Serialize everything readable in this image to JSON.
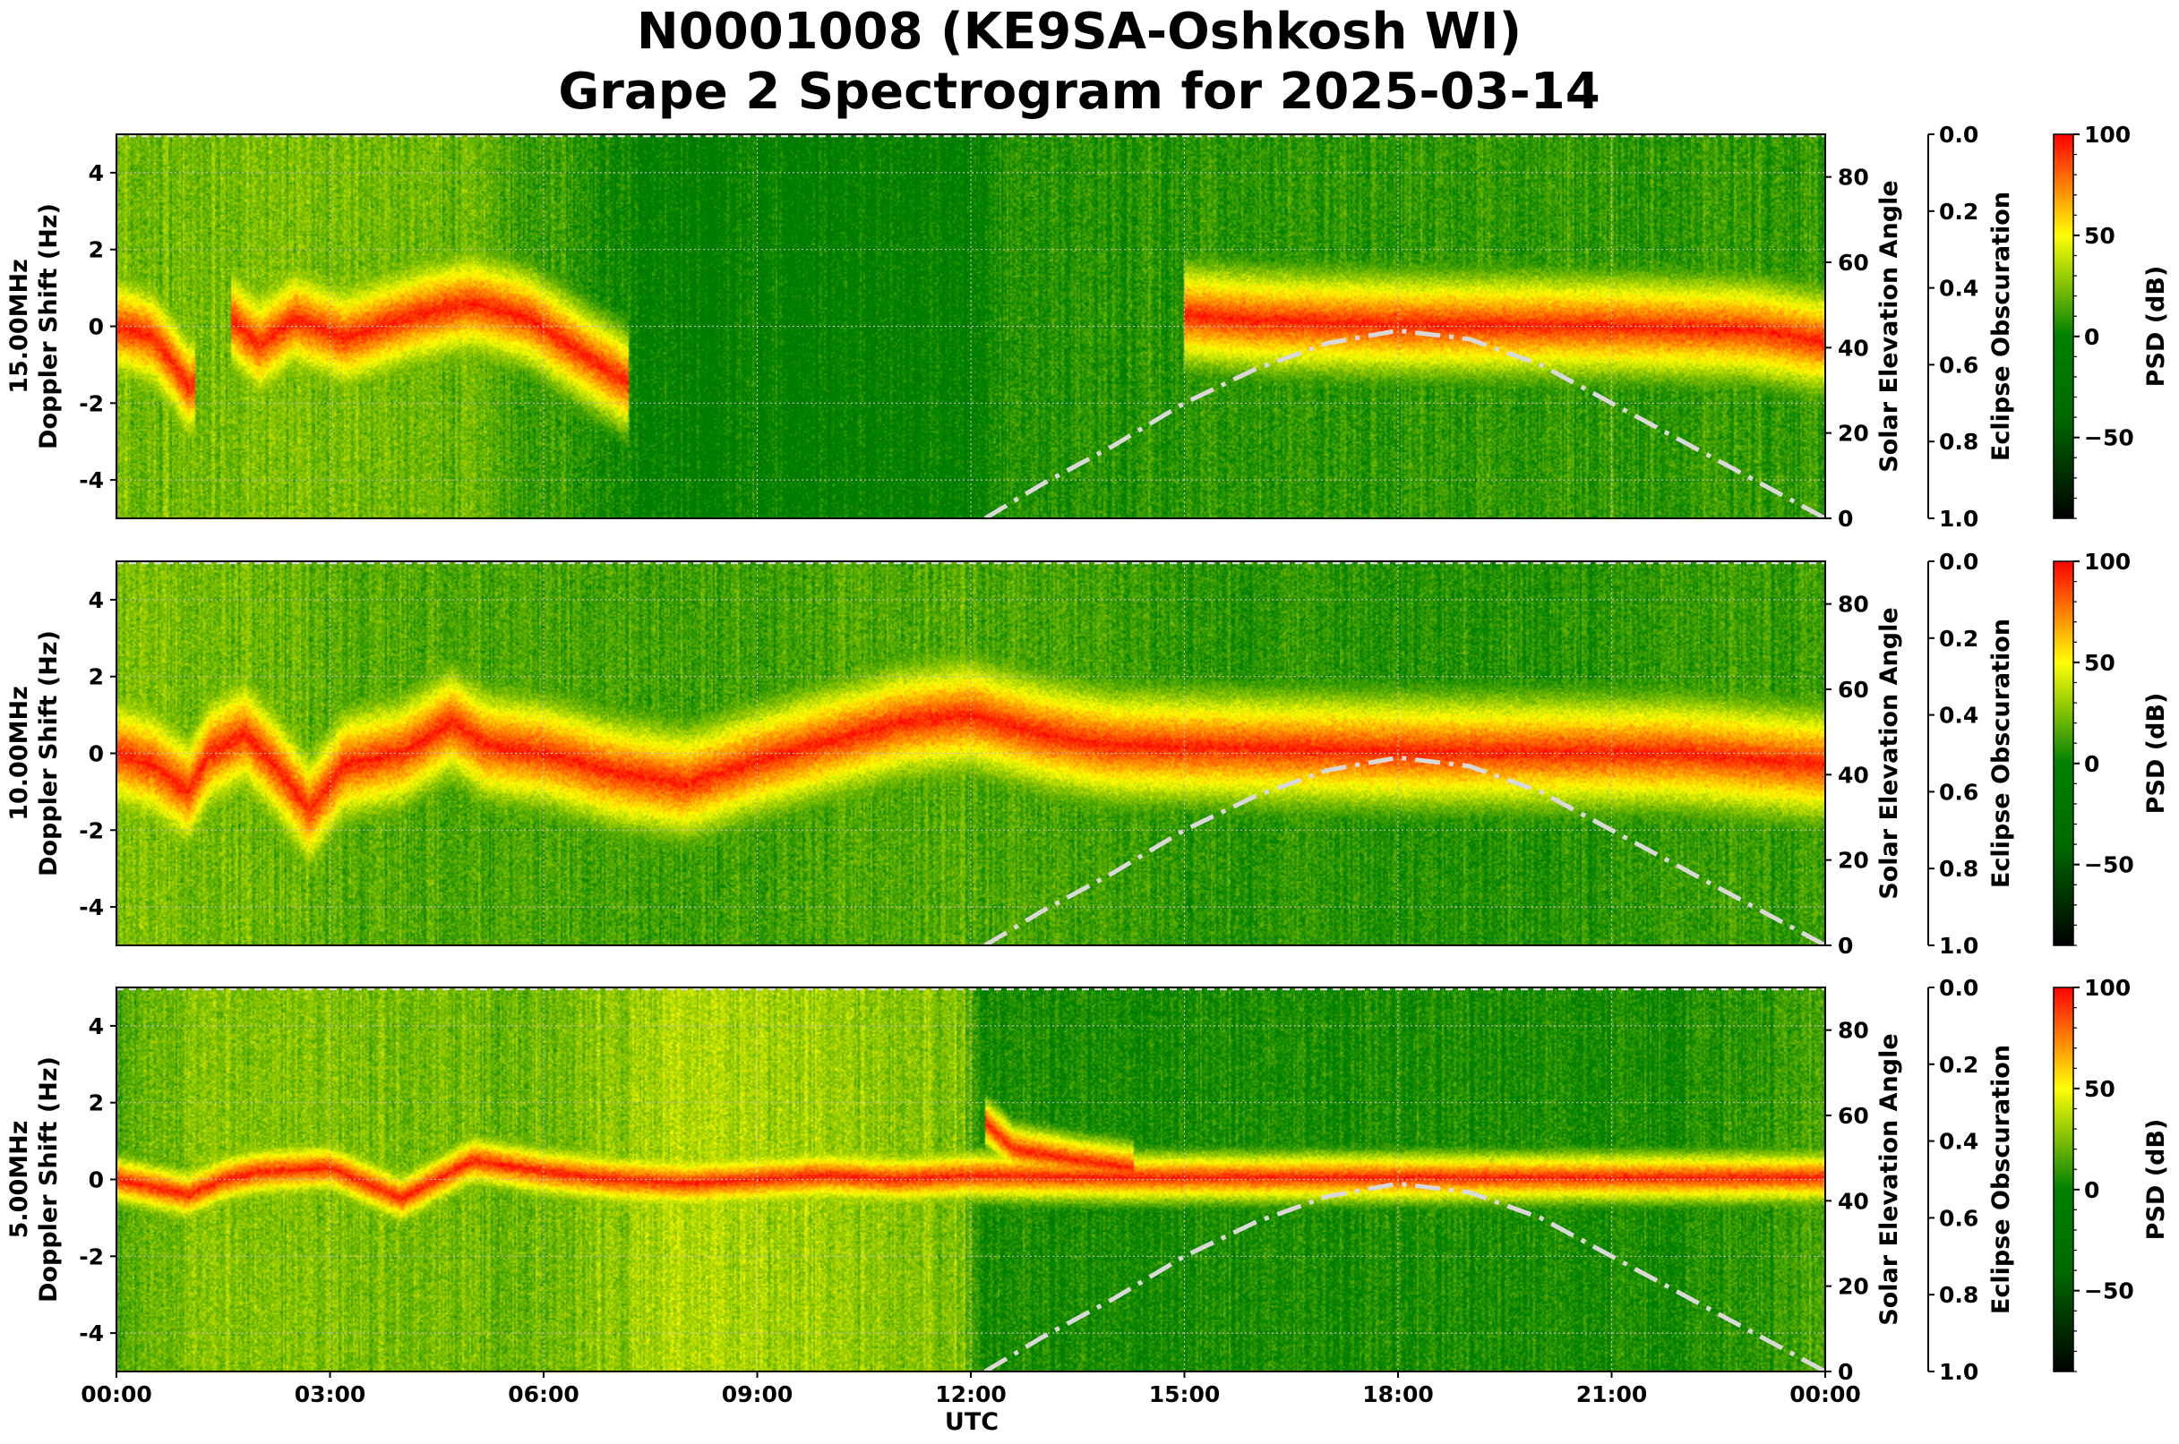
{
  "title_line1": "N0001008 (KE9SA-Oshkosh WI)",
  "title_line2": "Grape 2 Spectrogram for 2025-03-14",
  "chart_data": {
    "type": "heatmap",
    "xlabel": "UTC",
    "x_ticks": [
      "00:00",
      "03:00",
      "06:00",
      "09:00",
      "12:00",
      "15:00",
      "18:00",
      "21:00",
      "00:00"
    ],
    "x_range_hours": [
      0,
      24
    ],
    "ylabel": "Doppler Shift (Hz)",
    "ylim": [
      -5,
      5
    ],
    "y_ticks": [
      -4,
      -2,
      0,
      2,
      4
    ],
    "right_ylabel": "Solar Elevation Angle",
    "right_ylim": [
      0,
      90
    ],
    "right_ticks": [
      0,
      20,
      40,
      60,
      80
    ],
    "eclipse_label": "Eclipse Obscuration",
    "eclipse_ticks": [
      "0.0",
      "0.2",
      "0.4",
      "0.6",
      "0.8",
      "1.0"
    ],
    "colorbar_label": "PSD (dB)",
    "colorbar_range": [
      -90,
      100
    ],
    "colorbar_ticks": [
      100,
      50,
      0,
      -50
    ],
    "colorbar_tick_labels": [
      "100",
      "50",
      "0",
      "−50"
    ],
    "colormap": [
      "#000000",
      "#006a00",
      "#008000",
      "#ffff00",
      "#ff8000",
      "#ff0000"
    ],
    "grid": true,
    "solar_elevation_style": {
      "color": "#d9d9d9",
      "line": "dash-dot"
    },
    "solar_elevation": [
      [
        12.2,
        0
      ],
      [
        13,
        8
      ],
      [
        14,
        17
      ],
      [
        15,
        27
      ],
      [
        16,
        35
      ],
      [
        17,
        41
      ],
      [
        18,
        44
      ],
      [
        19,
        42
      ],
      [
        20,
        36
      ],
      [
        21,
        27
      ],
      [
        22,
        18
      ],
      [
        23,
        9
      ],
      [
        24,
        0
      ]
    ],
    "panels": [
      {
        "frequency": "15.00MHz",
        "trace_segments": [
          [
            [
              0,
              0
            ],
            [
              0.5,
              -0.3
            ],
            [
              0.8,
              -1.0
            ],
            [
              1.0,
              -1.6
            ],
            [
              1.1,
              -1.5
            ]
          ],
          [
            [
              1.6,
              0.2
            ],
            [
              2.0,
              -0.5
            ],
            [
              2.5,
              0.2
            ],
            [
              3.2,
              -0.3
            ],
            [
              4.2,
              0.3
            ],
            [
              5.0,
              0.6
            ],
            [
              5.8,
              0.2
            ],
            [
              6.6,
              -0.8
            ],
            [
              7.2,
              -1.5
            ]
          ],
          [
            [
              15,
              0.3
            ],
            [
              16,
              0.15
            ],
            [
              18,
              0.05
            ],
            [
              21,
              0.0
            ],
            [
              23,
              -0.1
            ],
            [
              24,
              -0.4
            ]
          ]
        ],
        "background_psd_db": [
          [
            0,
            22
          ],
          [
            3,
            24
          ],
          [
            5,
            20
          ],
          [
            6,
            10
          ],
          [
            7.5,
            -2
          ],
          [
            12,
            -2
          ],
          [
            12.5,
            6
          ],
          [
            15,
            8
          ],
          [
            24,
            10
          ]
        ]
      },
      {
        "frequency": "10.00MHz",
        "trace_segments": [
          [
            [
              0,
              0
            ],
            [
              0.5,
              -0.3
            ],
            [
              1.0,
              -1.0
            ],
            [
              1.3,
              0
            ],
            [
              1.8,
              0.5
            ],
            [
              2.3,
              -0.5
            ],
            [
              2.7,
              -1.5
            ],
            [
              3.2,
              -0.3
            ],
            [
              4,
              0
            ],
            [
              4.7,
              0.8
            ],
            [
              5.2,
              0.2
            ],
            [
              6,
              0
            ],
            [
              7,
              -0.5
            ],
            [
              8,
              -0.8
            ],
            [
              9,
              -0.2
            ],
            [
              10,
              0.3
            ],
            [
              11,
              0.8
            ],
            [
              12,
              1.0
            ],
            [
              13,
              0.5
            ],
            [
              14,
              0.2
            ],
            [
              18,
              0.05
            ],
            [
              22,
              0
            ],
            [
              24,
              -0.3
            ]
          ]
        ],
        "background_psd_db": [
          [
            0,
            25
          ],
          [
            4,
            16
          ],
          [
            8,
            12
          ],
          [
            12,
            16
          ],
          [
            15,
            8
          ],
          [
            20,
            6
          ],
          [
            24,
            12
          ]
        ]
      },
      {
        "frequency": "5.00MHz",
        "trace_segments": [
          [
            [
              0,
              0
            ],
            [
              1,
              -0.4
            ],
            [
              1.5,
              0
            ],
            [
              2,
              0.2
            ],
            [
              3,
              0.3
            ],
            [
              4,
              -0.5
            ],
            [
              5,
              0.5
            ],
            [
              6,
              0.2
            ],
            [
              7,
              0
            ],
            [
              8,
              -0.1
            ],
            [
              9,
              0
            ],
            [
              10,
              0.1
            ],
            [
              11,
              0
            ],
            [
              12,
              0.1
            ],
            [
              14,
              0.05
            ],
            [
              24,
              0.05
            ]
          ],
          [
            [
              12.2,
              1.5
            ],
            [
              12.6,
              0.8
            ],
            [
              13.5,
              0.5
            ],
            [
              14.3,
              0.3
            ]
          ]
        ],
        "background_psd_db": [
          [
            0,
            14
          ],
          [
            1,
            26
          ],
          [
            6,
            22
          ],
          [
            8,
            34
          ],
          [
            10,
            30
          ],
          [
            11.9,
            24
          ],
          [
            12.2,
            4
          ],
          [
            22,
            4
          ],
          [
            24,
            14
          ]
        ]
      }
    ]
  }
}
